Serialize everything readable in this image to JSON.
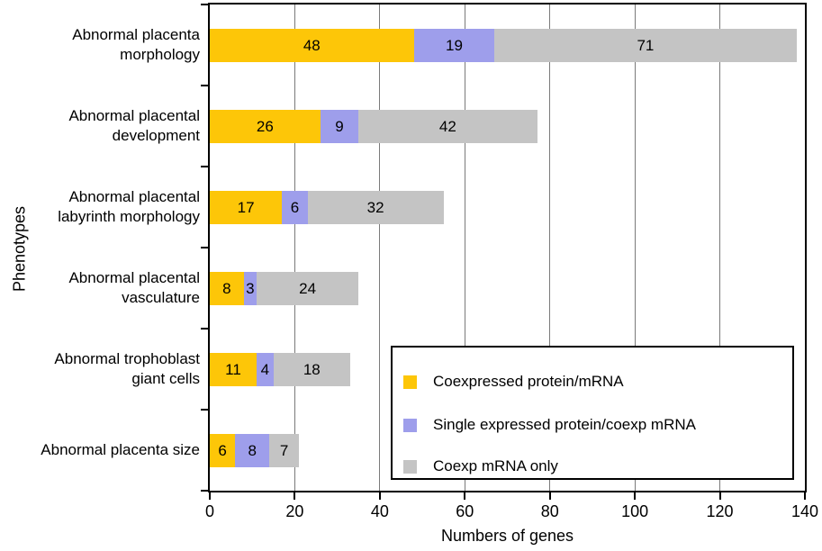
{
  "chart_data": {
    "type": "bar",
    "orientation": "horizontal",
    "stacked": true,
    "title": "",
    "xlabel": "Numbers of genes",
    "ylabel": "Phenotypes",
    "xlim": [
      0,
      140
    ],
    "xticks": [
      0,
      20,
      40,
      60,
      80,
      100,
      120,
      140
    ],
    "grid": "vertical",
    "legend_position": "inside-bottom-right",
    "categories": [
      [
        "Abnormal placenta",
        "morphology"
      ],
      [
        "Abnormal placental",
        "development"
      ],
      [
        "Abnormal placental",
        "labyrinth morphology"
      ],
      [
        "Abnormal placental",
        "vasculature"
      ],
      [
        "Abnormal trophoblast",
        "giant cells"
      ],
      [
        "Abnormal placenta size"
      ]
    ],
    "series": [
      {
        "name": "Coexpressed protein/mRNA",
        "color": "#FDC608",
        "values": [
          48,
          26,
          17,
          8,
          11,
          6
        ]
      },
      {
        "name": "Single expressed protein/coexp mRNA",
        "color": "#9E9EEB",
        "values": [
          19,
          9,
          6,
          3,
          4,
          8
        ]
      },
      {
        "name": "Coexp mRNA only",
        "color": "#C4C4C4",
        "values": [
          71,
          42,
          32,
          24,
          18,
          7
        ]
      }
    ],
    "colors": {
      "axis": "#000000",
      "gridline": "#7a7a7a",
      "background": "#ffffff"
    }
  }
}
